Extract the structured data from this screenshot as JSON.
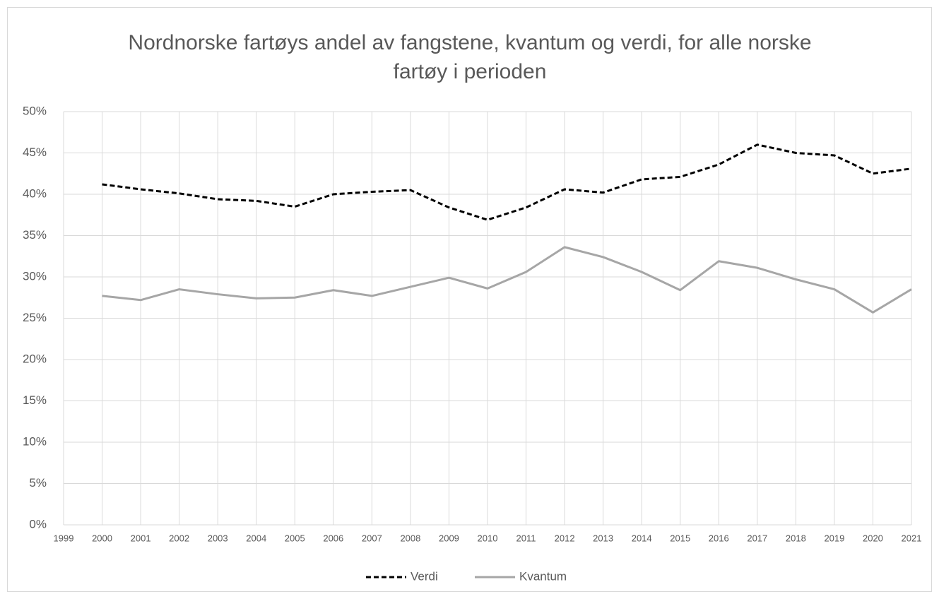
{
  "chart_data": {
    "type": "line",
    "title": "Nordnorske fartøys andel av fangstene, kvantum og verdi, for alle norske fartøy i perioden",
    "x": [
      2000,
      2001,
      2002,
      2003,
      2004,
      2005,
      2006,
      2007,
      2008,
      2009,
      2010,
      2011,
      2012,
      2013,
      2014,
      2015,
      2016,
      2017,
      2018,
      2019,
      2020,
      2021
    ],
    "series": [
      {
        "name": "Verdi",
        "color": "#000000",
        "dash": true,
        "values": [
          41.2,
          40.6,
          40.1,
          39.4,
          39.2,
          38.5,
          40.0,
          40.3,
          40.5,
          38.4,
          36.9,
          38.4,
          40.6,
          40.2,
          41.8,
          42.1,
          43.6,
          46.0,
          45.0,
          44.7,
          42.5,
          43.1
        ]
      },
      {
        "name": "Kvantum",
        "color": "#a6a6a6",
        "dash": false,
        "values": [
          27.7,
          27.2,
          28.5,
          27.9,
          27.4,
          27.5,
          28.4,
          27.7,
          28.8,
          29.9,
          28.6,
          30.6,
          33.6,
          32.4,
          30.6,
          28.4,
          31.9,
          31.1,
          29.7,
          28.5,
          25.7,
          28.5
        ]
      }
    ],
    "xlim": [
      1999,
      2021
    ],
    "xticks": [
      1999,
      2000,
      2001,
      2002,
      2003,
      2004,
      2005,
      2006,
      2007,
      2008,
      2009,
      2010,
      2011,
      2012,
      2013,
      2014,
      2015,
      2016,
      2017,
      2018,
      2019,
      2020,
      2021
    ],
    "ylim": [
      0,
      50
    ],
    "yticks": [
      {
        "value": 0,
        "label": "0%"
      },
      {
        "value": 5,
        "label": "5%"
      },
      {
        "value": 10,
        "label": "10%"
      },
      {
        "value": 15,
        "label": "15%"
      },
      {
        "value": 20,
        "label": "20%"
      },
      {
        "value": 25,
        "label": "25%"
      },
      {
        "value": 30,
        "label": "30%"
      },
      {
        "value": 35,
        "label": "35%"
      },
      {
        "value": 40,
        "label": "40%"
      },
      {
        "value": 45,
        "label": "45%"
      },
      {
        "value": 50,
        "label": "50%"
      }
    ],
    "grid": true,
    "legend": "bottom"
  }
}
